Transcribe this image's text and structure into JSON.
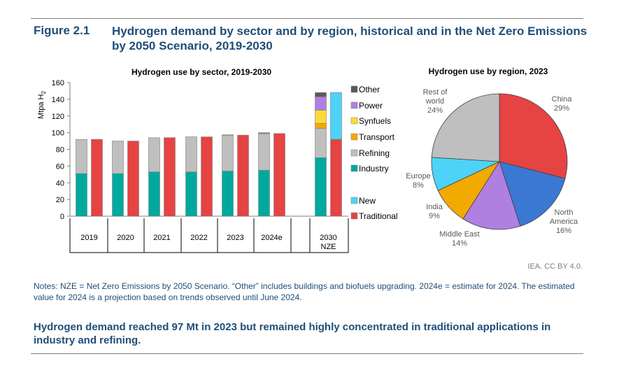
{
  "figure": {
    "label": "Figure 2.1",
    "title": "Hydrogen demand by sector and by region, historical and in the Net Zero Emissions by 2050 Scenario, 2019-2030"
  },
  "credit": "IEA. CC BY 4.0.",
  "notes": "Notes: NZE = Net Zero Emissions by 2050 Scenario. “Other” includes buildings and biofuels upgrading. 2024e = estimate for 2024. The estimated value for 2024 is a projection based on trends observed until June 2024.",
  "summary": "Hydrogen demand reached 97 Mt in 2023 but remained highly concentrated in traditional applications in industry and refining.",
  "chart_data": [
    {
      "type": "bar",
      "title": "Hydrogen use by sector, 2019-2030",
      "ylabel": "Mtpa H",
      "ylabel_sub": "2",
      "ylim": [
        0,
        160
      ],
      "yticks": [
        0,
        20,
        40,
        60,
        80,
        100,
        120,
        140,
        160
      ],
      "categories": [
        "2019",
        "2020",
        "2021",
        "2022",
        "2023",
        "2024e",
        "2030"
      ],
      "category_labels": [
        [
          "2019"
        ],
        [
          "2020"
        ],
        [
          "2021"
        ],
        [
          "2022"
        ],
        [
          "2023"
        ],
        [
          "2024e"
        ],
        [
          "2030",
          "NZE"
        ]
      ],
      "by_sector": [
        {
          "Industry": 51,
          "Refining": 41,
          "Transport": 0,
          "Synfuels": 0,
          "Power": 0,
          "Other": 0
        },
        {
          "Industry": 51,
          "Refining": 39,
          "Transport": 0,
          "Synfuels": 0,
          "Power": 0,
          "Other": 0
        },
        {
          "Industry": 53,
          "Refining": 41,
          "Transport": 0,
          "Synfuels": 0,
          "Power": 0,
          "Other": 0
        },
        {
          "Industry": 53,
          "Refining": 42,
          "Transport": 0,
          "Synfuels": 0,
          "Power": 0,
          "Other": 0
        },
        {
          "Industry": 54,
          "Refining": 43,
          "Transport": 0.5,
          "Synfuels": 0,
          "Power": 0,
          "Other": 0
        },
        {
          "Industry": 55,
          "Refining": 44,
          "Transport": 0.5,
          "Synfuels": 0,
          "Power": 0,
          "Other": 0.5
        },
        {
          "Industry": 70,
          "Refining": 35,
          "Transport": 6,
          "Synfuels": 16,
          "Power": 16,
          "Other": 5
        }
      ],
      "by_type": [
        {
          "Traditional": 92,
          "New": 0
        },
        {
          "Traditional": 90,
          "New": 0
        },
        {
          "Traditional": 94,
          "New": 0
        },
        {
          "Traditional": 95,
          "New": 0
        },
        {
          "Traditional": 97,
          "New": 0
        },
        {
          "Traditional": 99,
          "New": 0
        },
        {
          "Traditional": 92,
          "New": 56
        }
      ],
      "legend_sector": [
        {
          "name": "Other",
          "color": "#595959"
        },
        {
          "name": "Power",
          "color": "#b07fe2"
        },
        {
          "name": "Synfuels",
          "color": "#ffd93a"
        },
        {
          "name": "Transport",
          "color": "#f2a900"
        },
        {
          "name": "Refining",
          "color": "#bfbfbf"
        },
        {
          "name": "Industry",
          "color": "#00a99d"
        }
      ],
      "legend_type": [
        {
          "name": "New",
          "color": "#4dd3f7"
        },
        {
          "name": "Traditional",
          "color": "#e64343"
        }
      ],
      "legend_position": "right"
    },
    {
      "type": "pie",
      "title": "Hydrogen use by region, 2023",
      "slices": [
        {
          "label": "China",
          "value": 29,
          "pct": "29%",
          "color": "#e64343",
          "lines": [
            "China"
          ]
        },
        {
          "label": "North America",
          "value": 16,
          "pct": "16%",
          "color": "#3a78d4",
          "lines": [
            "North",
            "America"
          ]
        },
        {
          "label": "Middle East",
          "value": 14,
          "pct": "14%",
          "color": "#b07fe2",
          "lines": [
            "Middle East"
          ]
        },
        {
          "label": "India",
          "value": 9,
          "pct": "9%",
          "color": "#f2a900",
          "lines": [
            "India"
          ]
        },
        {
          "label": "Europe",
          "value": 8,
          "pct": "8%",
          "color": "#4dd3f7",
          "lines": [
            "Europe"
          ]
        },
        {
          "label": "Rest of world",
          "value": 24,
          "pct": "24%",
          "color": "#bfbfbf",
          "lines": [
            "Rest of",
            "world"
          ]
        }
      ]
    }
  ],
  "colors": {
    "heading": "#1f4e79",
    "axis": "#7f7f7f",
    "text": "#000000",
    "muted": "#595959"
  }
}
